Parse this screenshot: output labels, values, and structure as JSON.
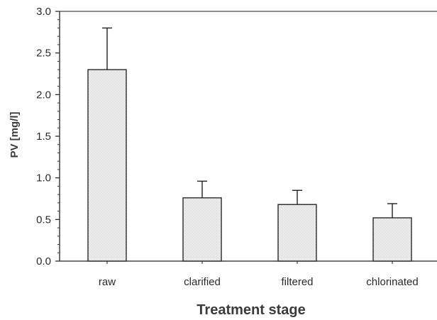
{
  "chart_data": {
    "type": "bar",
    "categories": [
      "raw",
      "clarified",
      "filtered",
      "chlorinated"
    ],
    "values": [
      2.3,
      0.76,
      0.68,
      0.52
    ],
    "error_upper": [
      2.8,
      0.96,
      0.85,
      0.69
    ],
    "title": "",
    "xlabel": "Treatment stage",
    "ylabel": "PV [mg/l]",
    "ylim": [
      0,
      3.0
    ],
    "yticks": [
      "0.0",
      "0.5",
      "1.0",
      "1.5",
      "2.0",
      "2.5",
      "3.0"
    ],
    "grid": false,
    "bar_color": "#e8e8e8",
    "bar_pattern": "stippled",
    "edge_color": "#1a1a1a"
  }
}
